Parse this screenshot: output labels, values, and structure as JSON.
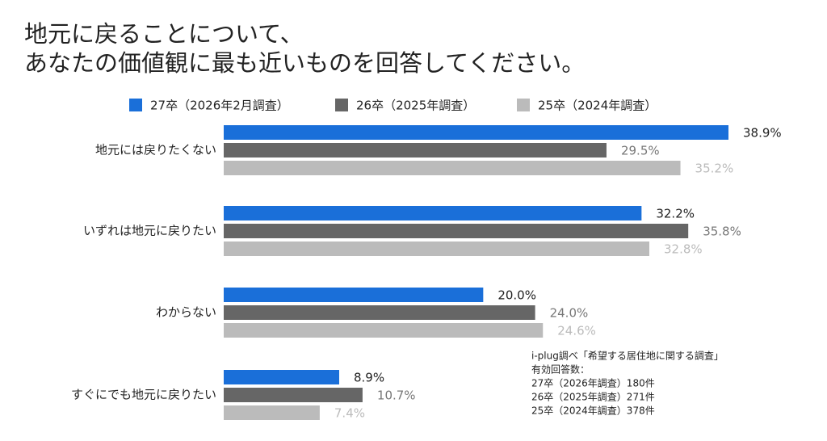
{
  "chart_data": {
    "type": "bar",
    "orientation": "horizontal",
    "title": [
      "地元に戻ることについて、",
      "あなたの価値観に最も近いものを回答してください。"
    ],
    "categories": [
      "地元には戻りたくない",
      "いずれは地元に戻りたい",
      "わからない",
      "すぐにでも地元に戻りたい"
    ],
    "series": [
      {
        "name": "27卒（2026年2月調査）",
        "color": "#1a6fd9",
        "label_color": "#222222",
        "values": [
          38.9,
          32.2,
          20.0,
          8.9
        ],
        "value_labels": [
          "38.9%",
          "32.2%",
          "20.0%",
          "8.9%"
        ]
      },
      {
        "name": "26卒（2025年調査）",
        "color": "#666666",
        "label_color": "#777777",
        "values": [
          29.5,
          35.8,
          24.0,
          10.7
        ],
        "value_labels": [
          "29.5%",
          "35.8%",
          "24.0%",
          "10.7%"
        ]
      },
      {
        "name": "25卒（2024年調査）",
        "color": "#bbbbbb",
        "label_color": "#bbbbbb",
        "values": [
          35.2,
          32.8,
          24.6,
          7.4
        ],
        "value_labels": [
          "35.2%",
          "32.8%",
          "24.6%",
          "7.4%"
        ]
      }
    ],
    "notes": [
      "i-plug調べ「希望する居住地に関する調査」",
      "有効回答数：",
      "27卒（2026年調査）180件",
      "26卒（2025年調査）271件",
      "25卒（2024年調査）378件"
    ]
  }
}
